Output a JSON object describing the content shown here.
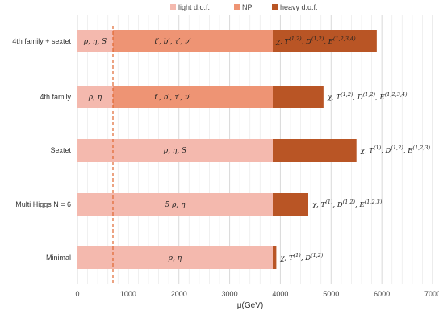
{
  "chart_data": {
    "type": "bar",
    "orientation": "horizontal",
    "stacked": true,
    "xlabel": "μ(GeV)",
    "xlim": [
      0,
      7000
    ],
    "xticks": [
      0,
      1000,
      2000,
      3000,
      4000,
      5000,
      6000,
      7000
    ],
    "grid": "vertical",
    "legend": "top",
    "categories": [
      "4th family + sextet",
      "4th family",
      "Sextet",
      "Multi Higgs N = 6",
      "Minimal"
    ],
    "series": [
      {
        "name": "light d.o.f.",
        "color": "#f4b9ae",
        "values": [
          700,
          700,
          3850,
          3850,
          3850
        ]
      },
      {
        "name": "NP",
        "color": "#ee9474",
        "values": [
          3150,
          3150,
          0,
          0,
          0
        ]
      },
      {
        "name": "heavy d.o.f.",
        "color": "#b95525",
        "values": [
          2050,
          1000,
          1650,
          700,
          70
        ]
      }
    ],
    "reference_line": {
      "x": 700,
      "style": "dashed",
      "color": "#e0662f"
    },
    "annotations": {
      "light_labels": [
        "ρ, η, S",
        "ρ, η",
        "ρ, η, S",
        "5 ρ, η",
        "ρ, η"
      ],
      "np_labels": [
        "t′, b′, τ′, ν′",
        "t′, b′, τ′, ν′",
        "",
        "",
        ""
      ],
      "heavy_labels": [
        "χ, T^(1,2), D^(1,2), E^(1,2,3,4)",
        "χ, T^(1,2), D^(1,2), E^(1,2,3,4)",
        "χ, T^(1), D^(1,2), E^(1,2,3)",
        "χ, T^(1), D^(1,2), E^(1,2,3)",
        "χ, T^(1), D^(1,2)"
      ]
    }
  }
}
